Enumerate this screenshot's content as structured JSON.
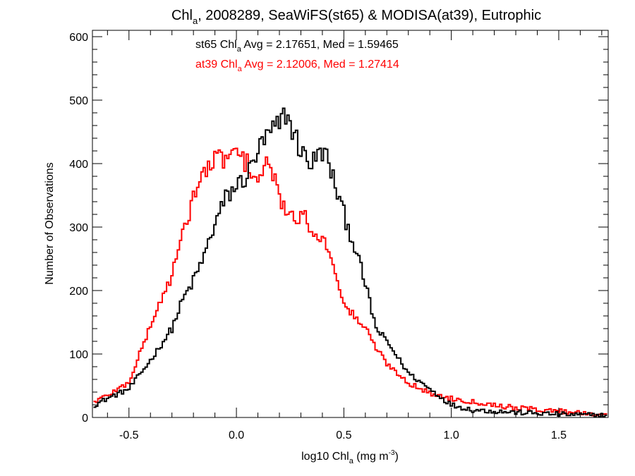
{
  "chart_data": {
    "type": "histogram",
    "title": {
      "prefix": "Chl",
      "sub": "a",
      "rest": ", 2008289, SeaWiFS(st65) & MODISA(at39), Eutrophic"
    },
    "xlabel": {
      "prefix": "log10 Chl",
      "sub": "a",
      "mid": " (mg m",
      "sup": "-3",
      "end": ")"
    },
    "ylabel": "Number of Observations",
    "xlim": [
      -0.67,
      1.73
    ],
    "ylim": [
      0,
      610
    ],
    "xticks": [
      -0.5,
      0.0,
      0.5,
      1.0,
      1.5
    ],
    "xtick_labels": [
      "-0.5",
      "0.0",
      "0.5",
      "1.0",
      "1.5"
    ],
    "yticks": [
      0,
      100,
      200,
      300,
      400,
      500,
      600
    ],
    "ytick_labels": [
      "0",
      "100",
      "200",
      "300",
      "400",
      "500",
      "600"
    ],
    "x_minor_step": 0.1,
    "y_minor_step": 20,
    "grid": false,
    "legend_placement": "top-left",
    "series": [
      {
        "id": "st65",
        "color": "#000000",
        "label": {
          "prefix": "st65 Chl",
          "sub": "a",
          "rest": " Avg = 2.17651, Med = 1.59465"
        },
        "x": [
          -0.66,
          -0.6,
          -0.5,
          -0.4,
          -0.3,
          -0.25,
          -0.2,
          -0.15,
          -0.1,
          -0.05,
          0.0,
          0.05,
          0.1,
          0.15,
          0.2,
          0.23,
          0.3,
          0.35,
          0.4,
          0.42,
          0.5,
          0.55,
          0.6,
          0.65,
          0.7,
          0.8,
          0.9,
          1.0,
          1.1,
          1.3,
          1.5,
          1.72
        ],
        "y": [
          20,
          30,
          45,
          90,
          140,
          185,
          215,
          255,
          305,
          345,
          365,
          380,
          420,
          445,
          460,
          480,
          420,
          400,
          420,
          410,
          320,
          270,
          210,
          140,
          120,
          70,
          45,
          20,
          12,
          8,
          5,
          3
        ]
      },
      {
        "id": "at39",
        "color": "#ff0000",
        "label": {
          "prefix": "at39 Chl",
          "sub": "a",
          "rest": " Avg = 2.12006, Med = 1.27414"
        },
        "x": [
          -0.66,
          -0.6,
          -0.5,
          -0.45,
          -0.4,
          -0.35,
          -0.3,
          -0.25,
          -0.2,
          -0.15,
          -0.1,
          -0.05,
          0.0,
          0.05,
          0.1,
          0.15,
          0.2,
          0.25,
          0.3,
          0.35,
          0.4,
          0.45,
          0.5,
          0.55,
          0.6,
          0.65,
          0.7,
          0.8,
          0.9,
          1.0,
          1.1,
          1.2,
          1.3,
          1.5,
          1.72
        ],
        "y": [
          25,
          35,
          55,
          100,
          145,
          185,
          225,
          285,
          350,
          385,
          405,
          410,
          415,
          400,
          375,
          400,
          350,
          310,
          320,
          300,
          280,
          250,
          175,
          160,
          140,
          110,
          85,
          55,
          38,
          30,
          25,
          20,
          15,
          10,
          5
        ]
      }
    ]
  }
}
